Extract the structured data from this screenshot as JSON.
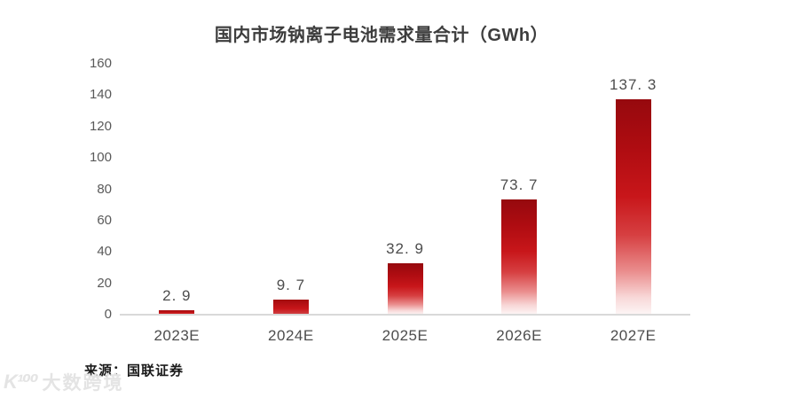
{
  "chart_data": {
    "type": "bar",
    "title": "国内市场钠离子电池需求量合计（GWh）",
    "categories": [
      "2023E",
      "2024E",
      "2025E",
      "2026E",
      "2027E"
    ],
    "values": [
      2.9,
      9.7,
      32.9,
      73.7,
      137.3
    ],
    "value_labels": [
      "2. 9",
      "9. 7",
      "32. 9",
      "73. 7",
      "137. 3"
    ],
    "xlabel": "",
    "ylabel": "",
    "ylim": [
      0,
      160
    ],
    "yticks": [
      0,
      20,
      40,
      60,
      80,
      100,
      120,
      140,
      160
    ],
    "grid": false,
    "legend": "none",
    "colors": {
      "bar_gradient_top": "#96090e",
      "bar_gradient_mid": "#c8161a",
      "bar_gradient_bottom": "#fdf6f6",
      "axis_line": "#d9d9d9",
      "tick_label": "#595959",
      "value_label": "#4d4d4d",
      "category_label": "#4d4d4d",
      "title": "#3d3d3d"
    }
  },
  "source": {
    "text": "来源：国联证券"
  },
  "watermark": {
    "logo": "K¹⁰⁰",
    "text": "大数跨境"
  }
}
